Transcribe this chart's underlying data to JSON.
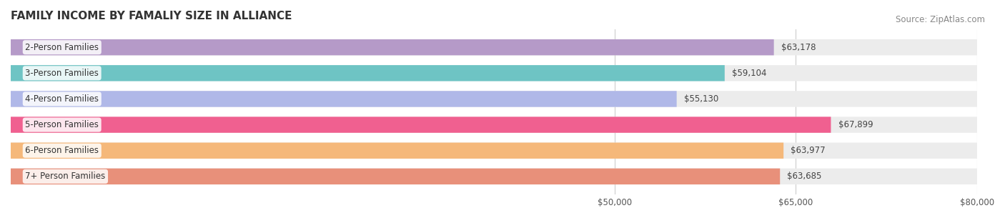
{
  "title": "FAMILY INCOME BY FAMALIY SIZE IN ALLIANCE",
  "source": "Source: ZipAtlas.com",
  "categories": [
    "2-Person Families",
    "3-Person Families",
    "4-Person Families",
    "5-Person Families",
    "6-Person Families",
    "7+ Person Families"
  ],
  "values": [
    63178,
    59104,
    55130,
    67899,
    63977,
    63685
  ],
  "labels": [
    "$63,178",
    "$59,104",
    "$55,130",
    "$67,899",
    "$63,977",
    "$63,685"
  ],
  "bar_colors": [
    "#b59ac8",
    "#6ec4c4",
    "#b0b8e8",
    "#f06090",
    "#f5b87a",
    "#e8907a"
  ],
  "bar_bg_color": "#f0f0f0",
  "background_color": "#ffffff",
  "xmin": 0,
  "xmax": 80000,
  "xticks": [
    50000,
    65000,
    80000
  ],
  "xtick_labels": [
    "$50,000",
    "$65,000",
    "$80,000"
  ],
  "title_fontsize": 11,
  "label_fontsize": 8.5,
  "tick_fontsize": 8.5,
  "source_fontsize": 8.5
}
